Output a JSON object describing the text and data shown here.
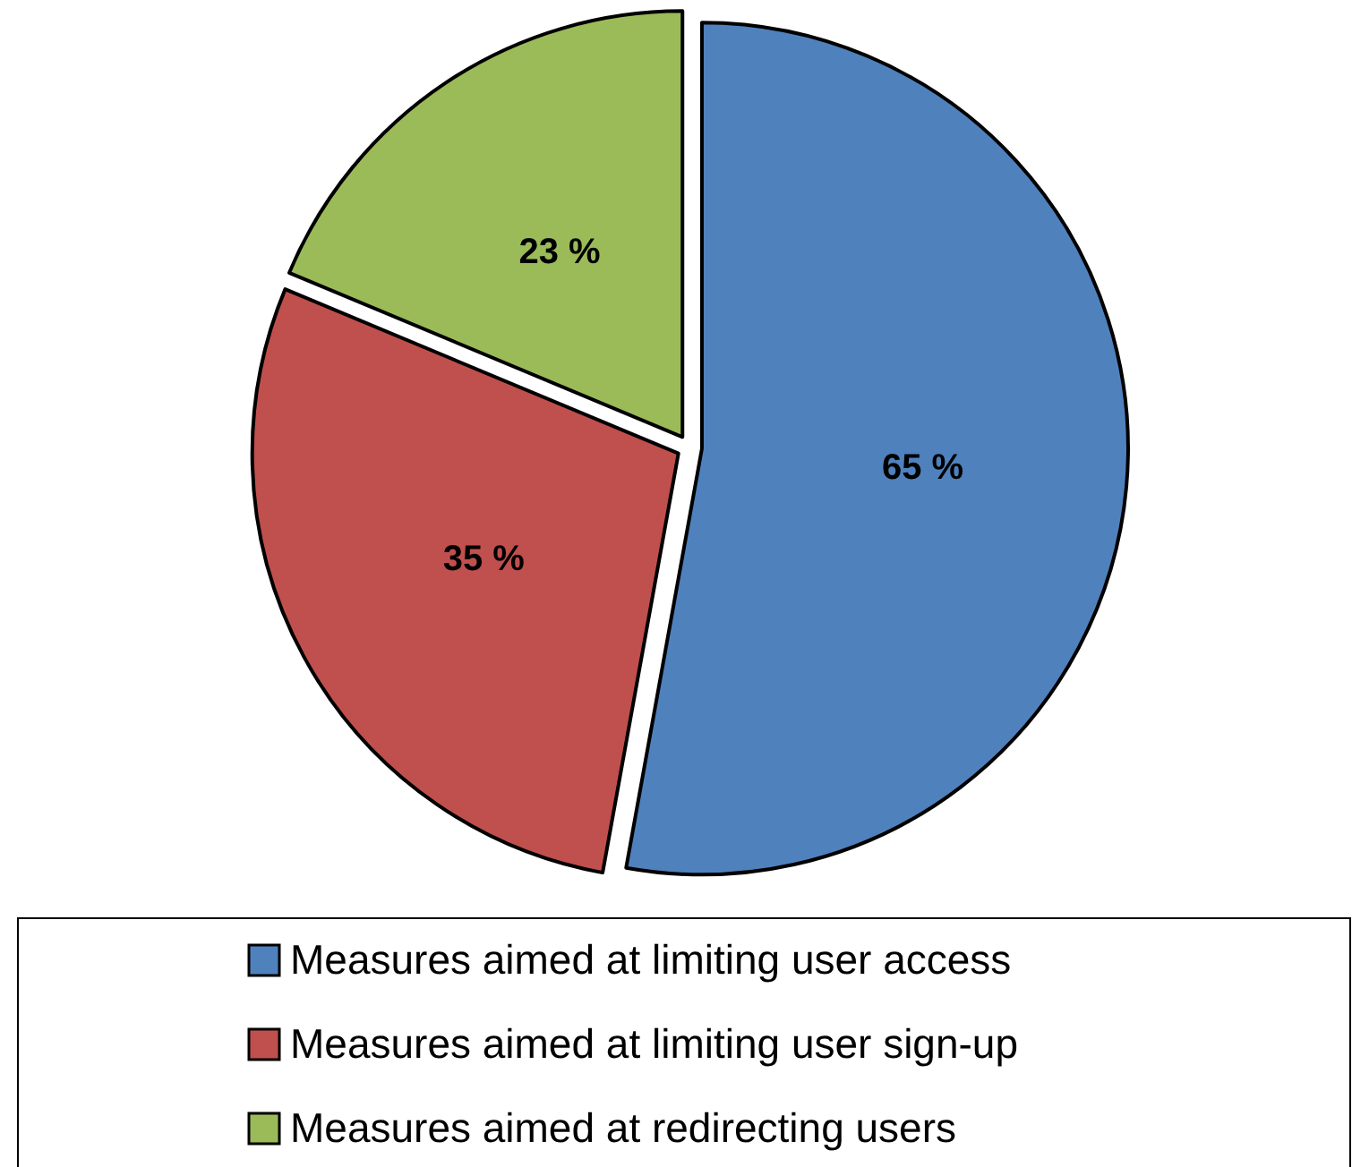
{
  "chart_data": {
    "type": "pie",
    "categories": [
      "Measures aimed at limiting user access",
      "Measures aimed at limiting user sign-up",
      "Measures aimed at redirecting users"
    ],
    "values": [
      65,
      35,
      23
    ],
    "colors": [
      "#4f81bd",
      "#c0504d",
      "#9bbb59"
    ],
    "value_labels": [
      "65 %",
      "35 %",
      "23 %"
    ],
    "legend": "bottom"
  }
}
